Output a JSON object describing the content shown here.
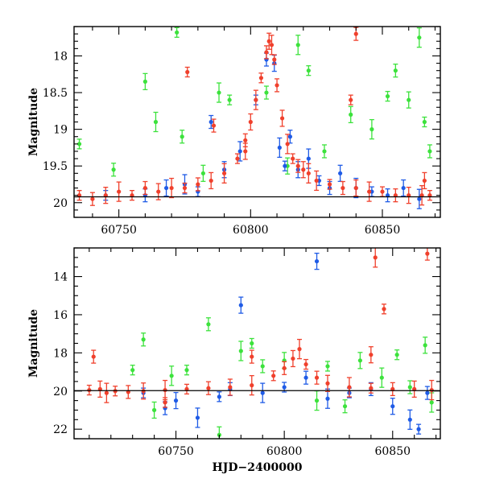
{
  "colors": {
    "blue": "#1f5be6",
    "green": "#3ce23c",
    "red": "#f0402c"
  },
  "chart_data": [
    {
      "type": "scatter",
      "title": "",
      "xlabel": "",
      "ylabel": "Magnitude",
      "xlim": [
        60733,
        60872
      ],
      "ylim": [
        20.2,
        17.6
      ],
      "y_inverted": true,
      "x_ticks": [
        "60750",
        "60800",
        "60850"
      ],
      "y_ticks": [
        "18",
        "18.5",
        "19",
        "19.5",
        "20"
      ],
      "reference_line_y": 19.92,
      "error_bars": true,
      "grid": false,
      "series": [
        {
          "color_key": "red",
          "x": [
            60735,
            60740,
            60745,
            60750,
            60755,
            60760,
            60765,
            60770,
            60775,
            60780,
            60785,
            60790,
            60795,
            60798,
            60800,
            60802,
            60804,
            60806,
            60807,
            60808,
            60809,
            60810,
            60812,
            60814,
            60816,
            60818,
            60820,
            60825,
            60830,
            60835,
            60840,
            60845,
            60850,
            60855,
            60860,
            60865,
            60868
          ],
          "y": [
            19.9,
            19.95,
            19.9,
            19.85,
            19.9,
            19.8,
            19.85,
            19.8,
            19.8,
            19.75,
            19.7,
            19.6,
            19.4,
            19.15,
            18.9,
            18.6,
            18.3,
            17.95,
            17.8,
            17.85,
            18.05,
            18.4,
            18.85,
            19.2,
            19.4,
            19.5,
            19.55,
            19.7,
            19.75,
            19.8,
            19.8,
            19.85,
            19.85,
            19.9,
            19.9,
            19.9,
            19.9
          ]
        },
        {
          "color_key": "red",
          "x": [
            60776,
            60786,
            60798,
            60822,
            60838,
            60840,
            60866
          ],
          "y": [
            18.22,
            18.95,
            19.3,
            19.6,
            18.6,
            17.7,
            19.7
          ]
        },
        {
          "color_key": "blue",
          "x": [
            60745,
            60760,
            60768,
            60775,
            60780,
            60785,
            60790,
            60796,
            60802,
            60806,
            60809,
            60811,
            60813,
            60815,
            60818,
            60822,
            60826,
            60830,
            60834,
            60840,
            60846,
            60852,
            60858,
            60864
          ],
          "y": [
            19.9,
            19.9,
            19.8,
            19.75,
            19.85,
            18.9,
            19.55,
            19.3,
            18.6,
            18.05,
            18.1,
            19.25,
            19.5,
            19.1,
            19.55,
            19.4,
            19.7,
            19.8,
            19.6,
            19.8,
            19.85,
            19.9,
            19.8,
            19.95
          ]
        },
        {
          "color_key": "green",
          "x": [
            60735,
            60748,
            60760,
            60764,
            60772,
            60774,
            60782,
            60788,
            60792,
            60806,
            60814,
            60818,
            60822,
            60828,
            60838,
            60846,
            60852,
            60855,
            60860,
            60864,
            60866,
            60868
          ],
          "y": [
            19.2,
            19.55,
            18.35,
            18.9,
            17.68,
            19.1,
            19.6,
            18.5,
            18.6,
            18.5,
            19.5,
            17.85,
            18.2,
            19.3,
            18.8,
            19.0,
            18.55,
            18.2,
            18.6,
            17.75,
            18.9,
            19.3
          ]
        }
      ]
    },
    {
      "type": "scatter",
      "title": "",
      "xlabel": "HJD−2400000",
      "ylabel": "Magnitude",
      "xlim": [
        60703,
        60872
      ],
      "ylim": [
        22.5,
        12.5
      ],
      "y_inverted": true,
      "x_ticks": [
        "60750",
        "60800",
        "60850"
      ],
      "y_ticks": [
        "14",
        "16",
        "18",
        "20",
        "22"
      ],
      "reference_line_y": 19.98,
      "error_bars": true,
      "grid": false,
      "series": [
        {
          "color_key": "red",
          "x": [
            60710,
            60712,
            60715,
            60718,
            60722,
            60728,
            60735,
            60745,
            60755,
            60765,
            60775,
            60785,
            60795,
            60800,
            60804,
            60807,
            60810,
            60815,
            60820,
            60830,
            60840,
            60850,
            60860,
            60868
          ],
          "y": [
            19.95,
            18.2,
            19.9,
            20.1,
            20.0,
            20.05,
            20.0,
            19.95,
            19.9,
            19.85,
            19.8,
            19.7,
            19.2,
            18.8,
            18.3,
            17.8,
            18.6,
            19.3,
            19.6,
            19.8,
            19.85,
            19.9,
            19.9,
            19.95
          ]
        },
        {
          "color_key": "red",
          "x": [
            60745,
            60785,
            60840,
            60842,
            60846,
            60866
          ],
          "y": [
            20.6,
            18.2,
            18.1,
            13.0,
            15.7,
            12.8
          ]
        },
        {
          "color_key": "blue",
          "x": [
            60735,
            60745,
            60750,
            60760,
            60770,
            60775,
            60780,
            60790,
            60800,
            60810,
            60815,
            60820,
            60830,
            60840,
            60850,
            60858,
            60862,
            60866
          ],
          "y": [
            20.1,
            20.9,
            20.5,
            21.4,
            20.3,
            19.9,
            15.5,
            20.1,
            19.8,
            19.3,
            13.2,
            20.4,
            20.1,
            19.9,
            20.8,
            21.5,
            22.0,
            20.1
          ]
        },
        {
          "color_key": "green",
          "x": [
            60730,
            60735,
            60740,
            60748,
            60755,
            60765,
            60770,
            60780,
            60785,
            60790,
            60800,
            60815,
            60820,
            60828,
            60835,
            60845,
            60852,
            60858,
            60865,
            60868
          ],
          "y": [
            18.9,
            17.3,
            21.0,
            19.2,
            18.9,
            16.5,
            22.3,
            17.9,
            17.5,
            18.7,
            18.4,
            20.5,
            18.7,
            20.8,
            18.4,
            19.3,
            18.1,
            19.8,
            17.6,
            20.6
          ]
        }
      ]
    }
  ]
}
